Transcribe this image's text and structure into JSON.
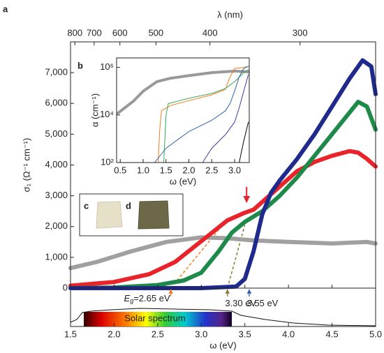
{
  "chart_data": [
    {
      "type": "line",
      "panel_label": "a",
      "xlabel": "ω (eV)",
      "ylabel": "σ₁ (Ω⁻¹ cm⁻¹)",
      "x2label": "λ (nm)",
      "xlim": [
        1.5,
        5.0
      ],
      "ylim": [
        0,
        8000
      ],
      "xticks": [
        1.5,
        {
          "value": 2,
          "label": "2.0"
        },
        2.5,
        {
          "value": 3,
          "label": "3.0"
        },
        3.5,
        {
          "value": 4,
          "label": "4.0"
        },
        4.5,
        {
          "value": 5,
          "label": "5.0"
        }
      ],
      "yticks": [
        0,
        {
          "value": 1000,
          "label": "1,000"
        },
        {
          "value": 2000,
          "label": "2,000"
        },
        {
          "value": 3000,
          "label": "3,000"
        },
        {
          "value": 4000,
          "label": "4,000"
        },
        {
          "value": 5000,
          "label": "5,000"
        },
        {
          "value": 6000,
          "label": "6,000"
        },
        {
          "value": 7000,
          "label": "7,000"
        }
      ],
      "x2ticks": [
        800,
        700,
        600,
        500,
        400,
        300
      ],
      "series": [
        {
          "color": "#a0a0a0",
          "x": [
            1.5,
            1.8,
            2.2,
            2.6,
            3.0,
            3.3,
            3.6,
            4.0,
            4.5,
            4.9,
            5.0
          ],
          "values": [
            650,
            850,
            1200,
            1500,
            1650,
            1620,
            1550,
            1500,
            1450,
            1500,
            1450
          ]
        },
        {
          "color": "#e8232a",
          "x": [
            1.5,
            2.0,
            2.4,
            2.7,
            2.9,
            3.1,
            3.3,
            3.5,
            3.6,
            3.7,
            3.9,
            4.1,
            4.3,
            4.5,
            4.7,
            4.8,
            4.9,
            5.0
          ],
          "values": [
            80,
            200,
            450,
            850,
            1300,
            1750,
            2200,
            2450,
            2550,
            2800,
            3300,
            3800,
            4100,
            4300,
            4450,
            4400,
            4200,
            3950
          ]
        },
        {
          "color": "#1e8a4a",
          "x": [
            1.5,
            2.0,
            2.5,
            2.8,
            3.0,
            3.2,
            3.35,
            3.5,
            3.7,
            3.9,
            4.1,
            4.3,
            4.5,
            4.7,
            4.8,
            4.9,
            5.0
          ],
          "values": [
            0,
            20,
            100,
            250,
            500,
            1200,
            1800,
            2150,
            2500,
            3000,
            3600,
            4300,
            5000,
            5700,
            6050,
            5900,
            5150
          ]
        },
        {
          "color": "#1f2a8c",
          "x": [
            1.5,
            3.0,
            3.4,
            3.5,
            3.6,
            3.7,
            3.8,
            3.9,
            4.1,
            4.3,
            4.5,
            4.7,
            4.85,
            4.95,
            5.0
          ],
          "values": [
            0,
            0,
            50,
            300,
            1200,
            2400,
            3100,
            3500,
            4200,
            5000,
            5900,
            6800,
            7400,
            7200,
            6300
          ]
        }
      ],
      "extrapolations": [
        {
          "color": "#f47b20",
          "x": [
            2.65,
            3.2
          ],
          "values": [
            0,
            1900
          ]
        },
        {
          "color": "#8a7a30",
          "x": [
            3.3,
            3.5
          ],
          "values": [
            0,
            2050
          ]
        }
      ],
      "gaps": [
        {
          "x": 2.65,
          "symbol": "E",
          "subscript": "g",
          "label": "=2.65 eV",
          "color": "#f47b20"
        },
        {
          "x": 3.3,
          "label": "3.30 eV",
          "color": "#8a7a30"
        },
        {
          "x": 3.55,
          "label": "3.55 eV",
          "color": "#2d5fb0"
        }
      ],
      "arrow": {
        "x": 3.52,
        "y": 2700,
        "color": "#e8232a"
      },
      "photos": [
        {
          "label": "c"
        },
        {
          "label": "d"
        }
      ],
      "solar_spectrum_label": "Solar spectrum"
    },
    {
      "type": "line",
      "panel_label": "b",
      "ylog": true,
      "xlabel": "ω (eV)",
      "ylabel": "α (cm⁻¹)",
      "xlim": [
        0.42,
        3.32
      ],
      "ylim": [
        100,
        2500000
      ],
      "xticks": [
        0.5,
        {
          "value": 1,
          "label": "1.0"
        },
        1.5,
        {
          "value": 2,
          "label": "2.0"
        },
        2.5,
        {
          "value": 3,
          "label": "3.0"
        }
      ],
      "yticks": [
        {
          "value": 100,
          "label": "10²"
        },
        {
          "value": 10000,
          "label": "10⁴"
        },
        {
          "value": 1000000,
          "label": "10⁶"
        }
      ],
      "series": [
        {
          "color": "#999999",
          "width": 4,
          "x": [
            0.45,
            0.6,
            0.8,
            1.0,
            1.3,
            1.6,
            2.0,
            2.5,
            3.0,
            3.3
          ],
          "values": [
            12000,
            20000,
            40000,
            100000,
            250000,
            350000,
            450000,
            600000,
            700000,
            650000
          ]
        },
        {
          "color": "#f47b20",
          "x": [
            1.33,
            1.36,
            1.4,
            1.6,
            2.0,
            2.5,
            2.8,
            2.9,
            3.0,
            3.2,
            3.3
          ],
          "values": [
            100,
            2000,
            15000,
            25000,
            40000,
            70000,
            120000,
            400000,
            900000,
            1000000,
            1100000
          ]
        },
        {
          "color": "#3aa655",
          "x": [
            1.45,
            1.5,
            1.55,
            2.0,
            2.5,
            2.8,
            3.0,
            3.2,
            3.3
          ],
          "values": [
            100,
            10000,
            30000,
            50000,
            80000,
            130000,
            250000,
            600000,
            800000
          ]
        },
        {
          "color": "#2d5fb0",
          "x": [
            1.25,
            1.5,
            2.0,
            2.5,
            2.8,
            2.9,
            3.0,
            3.1,
            3.2,
            3.3
          ],
          "values": [
            100,
            400,
            2000,
            6000,
            15000,
            30000,
            100000,
            400000,
            900000,
            1100000
          ]
        },
        {
          "color": "#3a3a9e",
          "x": [
            2.3,
            2.5,
            2.8,
            3.0,
            3.1,
            3.2,
            3.3
          ],
          "values": [
            100,
            400,
            1500,
            5000,
            20000,
            100000,
            500000
          ]
        },
        {
          "color": "#000000",
          "x": [
            3.1,
            3.2,
            3.3
          ],
          "values": [
            100,
            800,
            5000
          ]
        }
      ]
    }
  ]
}
